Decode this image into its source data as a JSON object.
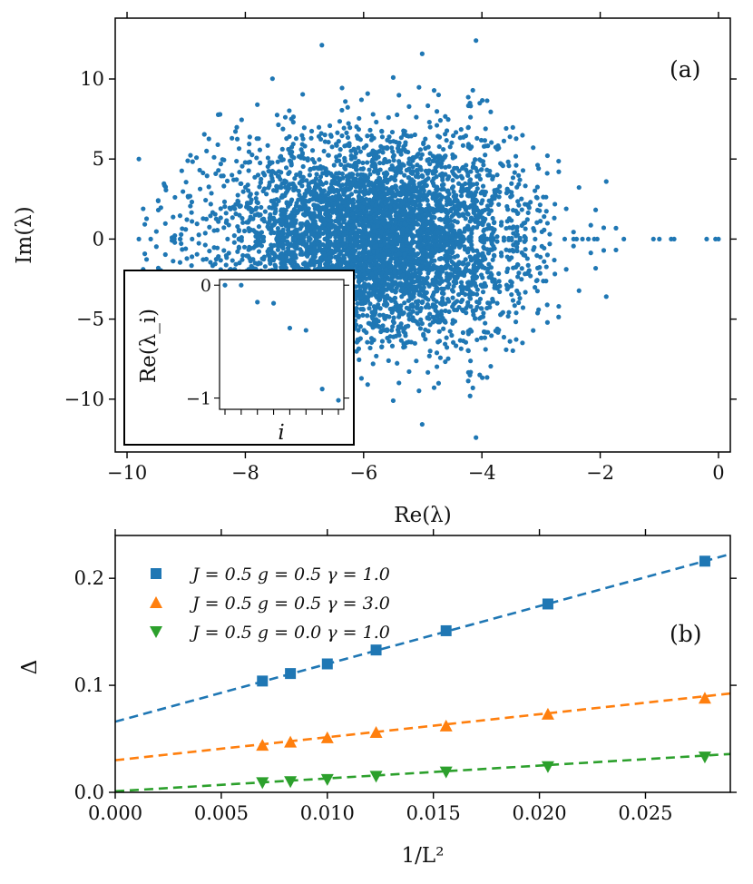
{
  "chart_data": [
    {
      "id": "a",
      "type": "scatter",
      "panel_label": "(a)",
      "xlabel": "Re(λ)",
      "ylabel": "Im(λ)",
      "xlim": [
        -10.2,
        0.2
      ],
      "ylim": [
        -13.3,
        13.8
      ],
      "xticks": [
        -10,
        -8,
        -6,
        -4,
        -2,
        0
      ],
      "xtick_labels": [
        "−10",
        "−8",
        "−6",
        "−4",
        "−2",
        "0"
      ],
      "yticks": [
        -10,
        -5,
        0,
        5,
        10
      ],
      "ytick_labels": [
        "−10",
        "−5",
        "0",
        "5",
        "10"
      ],
      "color": "#1f77b4",
      "approx_point_count": 2600,
      "cloud": {
        "x_range": [
          -9.8,
          -1.6
        ],
        "y_range": [
          -12.4,
          12.4
        ],
        "dense_centers": [
          [
            -6.3,
            0
          ],
          [
            -5.3,
            0
          ]
        ]
      },
      "real_axis_points": [
        -9.8,
        -9.6,
        -9.2,
        -8.9,
        -8.3,
        -7.7,
        -6.9,
        -5.4,
        -4.3,
        -3.1,
        -2.6,
        -2.45,
        -2.4,
        -2.3,
        -2.2,
        -2.1,
        -2.05,
        -1.6,
        -1.1,
        -1.0,
        -0.8,
        -0.75,
        -0.2,
        -0.05,
        0.0
      ],
      "extreme_points": [
        [
          -9.8,
          5.0
        ],
        [
          -4.1,
          12.4
        ],
        [
          -4.1,
          -12.4
        ],
        [
          -4.2,
          -9.8
        ]
      ],
      "inset": {
        "xlabel": "i",
        "ylabel": "Re(λ_i)",
        "ylim": [
          -1.1,
          0.05
        ],
        "yticks": [
          0,
          -1
        ],
        "ytick_labels": [
          "0",
          "−1"
        ],
        "indices": [
          1,
          2,
          3,
          4,
          5,
          6,
          7,
          8
        ],
        "values": [
          0.0,
          -0.0,
          -0.15,
          -0.16,
          -0.38,
          -0.4,
          -0.92,
          -1.02
        ]
      }
    },
    {
      "id": "b",
      "type": "line",
      "panel_label": "(b)",
      "xlabel": "1/L²",
      "ylabel": "Δ",
      "xlim": [
        0.0,
        0.029
      ],
      "ylim": [
        0.0,
        0.24
      ],
      "xticks": [
        0.0,
        0.005,
        0.01,
        0.015,
        0.02,
        0.025
      ],
      "xtick_labels": [
        "0.000",
        "0.005",
        "0.010",
        "0.015",
        "0.020",
        "0.025"
      ],
      "yticks": [
        0.0,
        0.1,
        0.2
      ],
      "ytick_labels": [
        "0.0",
        "0.1",
        "0.2"
      ],
      "legend_position": "top-left",
      "series": [
        {
          "name": "J = 0.5 g = 0.5 γ = 1.0",
          "color": "#1f77b4",
          "marker": "square",
          "x": [
            0.00694,
            0.00826,
            0.01,
            0.0123,
            0.0156,
            0.0204,
            0.0278
          ],
          "y": [
            0.104,
            0.111,
            0.12,
            0.133,
            0.151,
            0.176,
            0.216
          ],
          "fit": {
            "intercept": 0.066,
            "slope": 5.4
          }
        },
        {
          "name": "J = 0.5 g = 0.5 γ = 3.0",
          "color": "#ff7f0e",
          "marker": "triangle-up",
          "x": [
            0.00694,
            0.00826,
            0.01,
            0.0123,
            0.0156,
            0.0204,
            0.0278
          ],
          "y": [
            0.044,
            0.047,
            0.051,
            0.056,
            0.062,
            0.073,
            0.088
          ],
          "fit": {
            "intercept": 0.03,
            "slope": 2.15
          }
        },
        {
          "name": "J = 0.5 g = 0.0 γ = 1.0",
          "color": "#2ca02c",
          "marker": "triangle-down",
          "x": [
            0.00694,
            0.00826,
            0.01,
            0.0123,
            0.0156,
            0.0204,
            0.0278
          ],
          "y": [
            0.009,
            0.01,
            0.012,
            0.015,
            0.019,
            0.024,
            0.033
          ],
          "fit": {
            "intercept": 0.001,
            "slope": 1.2
          }
        }
      ]
    }
  ]
}
